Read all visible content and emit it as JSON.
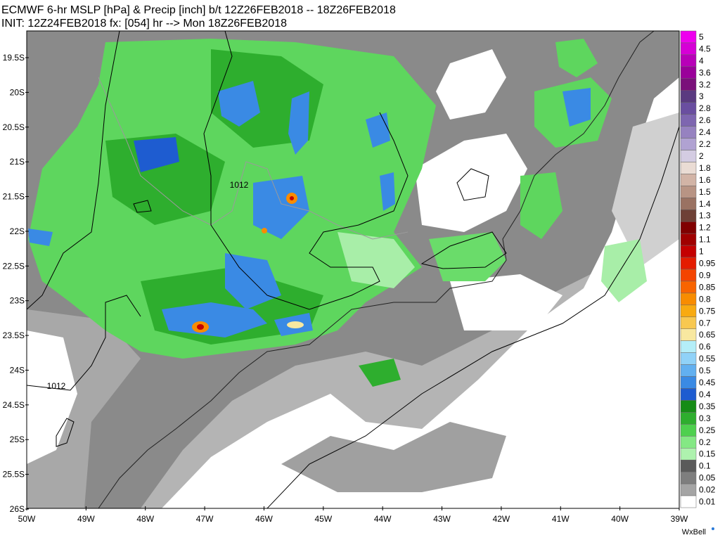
{
  "header": {
    "line1": "ECMWF 6-hr MSLP [hPa] & Precip [inch] b/t 12Z26FEB2018 -- 18Z26FEB2018",
    "line2": "INIT: 12Z24FEB2018 fx: [054] hr --> Mon 18Z26FEB2018"
  },
  "lat_labels": [
    "19.5S",
    "20S",
    "20.5S",
    "21S",
    "21.5S",
    "22S",
    "22.5S",
    "23S",
    "23.5S",
    "24S",
    "24.5S",
    "25S",
    "25.5S",
    "26S"
  ],
  "lon_labels": [
    "50W",
    "49W",
    "48W",
    "47W",
    "46W",
    "45W",
    "44W",
    "43W",
    "42W",
    "41W",
    "40W",
    "39W"
  ],
  "colorbar": [
    {
      "label": "5",
      "color": "#ee00ee"
    },
    {
      "label": "4.5",
      "color": "#d600d6"
    },
    {
      "label": "4",
      "color": "#b800b8"
    },
    {
      "label": "3.6",
      "color": "#9a009a"
    },
    {
      "label": "3.2",
      "color": "#7a107a"
    },
    {
      "label": "3",
      "color": "#5a3a80"
    },
    {
      "label": "2.8",
      "color": "#6a4ea0"
    },
    {
      "label": "2.6",
      "color": "#7e66b0"
    },
    {
      "label": "2.4",
      "color": "#9682c0"
    },
    {
      "label": "2.2",
      "color": "#b0a2d2"
    },
    {
      "label": "2",
      "color": "#d4cce2"
    },
    {
      "label": "1.8",
      "color": "#eadcd4"
    },
    {
      "label": "1.6",
      "color": "#d2b4a6"
    },
    {
      "label": "1.5",
      "color": "#b89484"
    },
    {
      "label": "1.4",
      "color": "#9a7262"
    },
    {
      "label": "1.3",
      "color": "#6e4036"
    },
    {
      "label": "1.2",
      "color": "#800000"
    },
    {
      "label": "1.1",
      "color": "#a00000"
    },
    {
      "label": "1",
      "color": "#c40000"
    },
    {
      "label": "0.95",
      "color": "#e41c00"
    },
    {
      "label": "0.9",
      "color": "#f44400"
    },
    {
      "label": "0.85",
      "color": "#f86400"
    },
    {
      "label": "0.8",
      "color": "#f88c00"
    },
    {
      "label": "0.75",
      "color": "#f8aa10"
    },
    {
      "label": "0.7",
      "color": "#f8c850"
    },
    {
      "label": "0.65",
      "color": "#f8e8a0"
    },
    {
      "label": "0.6",
      "color": "#b4eef8"
    },
    {
      "label": "0.55",
      "color": "#90d2f8"
    },
    {
      "label": "0.5",
      "color": "#62b0f0"
    },
    {
      "label": "0.45",
      "color": "#3a8ae4"
    },
    {
      "label": "0.4",
      "color": "#1e5cd0"
    },
    {
      "label": "0.35",
      "color": "#168c16"
    },
    {
      "label": "0.3",
      "color": "#2eae2e"
    },
    {
      "label": "0.25",
      "color": "#4ed04e"
    },
    {
      "label": "0.2",
      "color": "#84e884"
    },
    {
      "label": "0.15",
      "color": "#aef2ae"
    },
    {
      "label": "0.1",
      "color": "#5a5a5a"
    },
    {
      "label": "0.05",
      "color": "#7e7e7e"
    },
    {
      "label": "0.02",
      "color": "#a4a4a4"
    },
    {
      "label": "0.01",
      "color": "#ffffff"
    }
  ],
  "isobar_labels": [
    "1012",
    "1012"
  ],
  "logo": "WxBell"
}
